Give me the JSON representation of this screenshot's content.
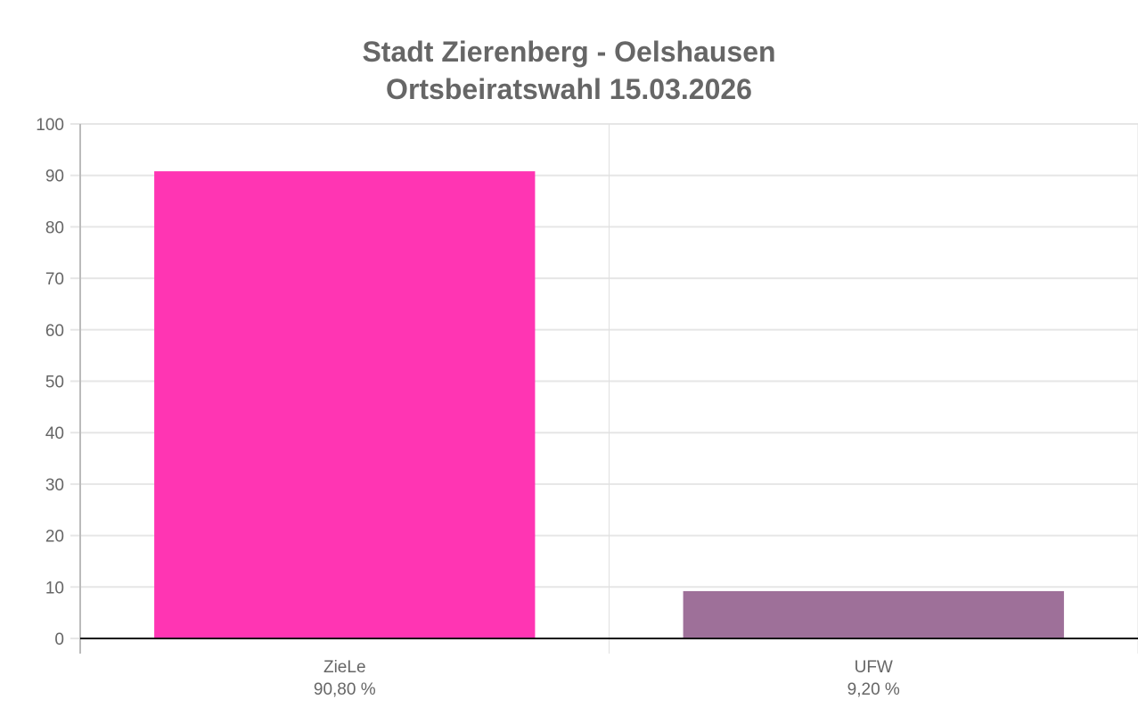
{
  "chart_data": {
    "type": "bar",
    "title": [
      "Stadt Zierenberg - Oelshausen",
      "Ortsbeiratswahl 15.03.2026"
    ],
    "categories": [
      "ZieLe",
      "UFW"
    ],
    "category_sublabels": [
      "90,80 %",
      "9,20 %"
    ],
    "values": [
      90.8,
      9.2
    ],
    "colors": [
      "#ff35b3",
      "#9e7099"
    ],
    "xlabel": "",
    "ylabel": "",
    "ylim": [
      0,
      100
    ],
    "yticks": [
      0,
      10,
      20,
      30,
      40,
      50,
      60,
      70,
      80,
      90,
      100
    ],
    "grid": true,
    "legend": "none"
  }
}
